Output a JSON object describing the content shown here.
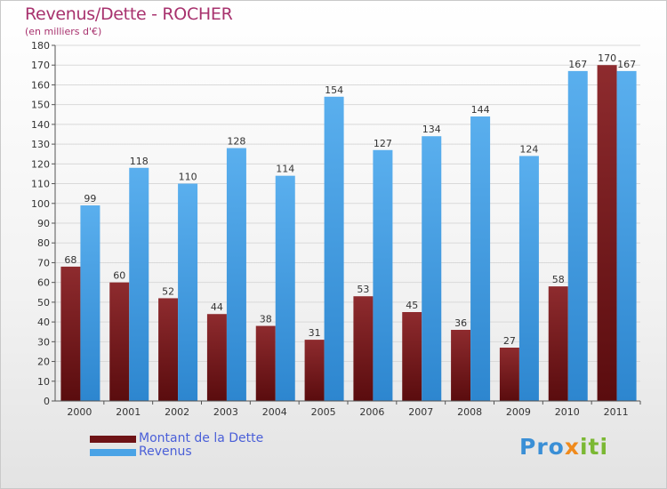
{
  "chart_data": {
    "type": "bar",
    "title": "Revenus/Dette - ROCHER",
    "subtitle": "(en milliers d'€)",
    "categories": [
      "2000",
      "2001",
      "2002",
      "2003",
      "2004",
      "2005",
      "2006",
      "2007",
      "2008",
      "2009",
      "2010",
      "2011"
    ],
    "series": [
      {
        "name": "Montant de la Dette",
        "color": "#7a1f22",
        "values": [
          68,
          60,
          52,
          44,
          38,
          31,
          53,
          45,
          36,
          27,
          58,
          170
        ]
      },
      {
        "name": "Revenus",
        "color": "#4aa3e6",
        "values": [
          99,
          118,
          110,
          128,
          114,
          154,
          127,
          134,
          144,
          124,
          167,
          167
        ]
      }
    ],
    "ylim": [
      0,
      180
    ],
    "ytick_step": 10,
    "grid": true,
    "legend_position": "bottom-left"
  },
  "logo": {
    "text": "Proxiti",
    "p1": "Pro",
    "x": "x",
    "it": "iti"
  }
}
